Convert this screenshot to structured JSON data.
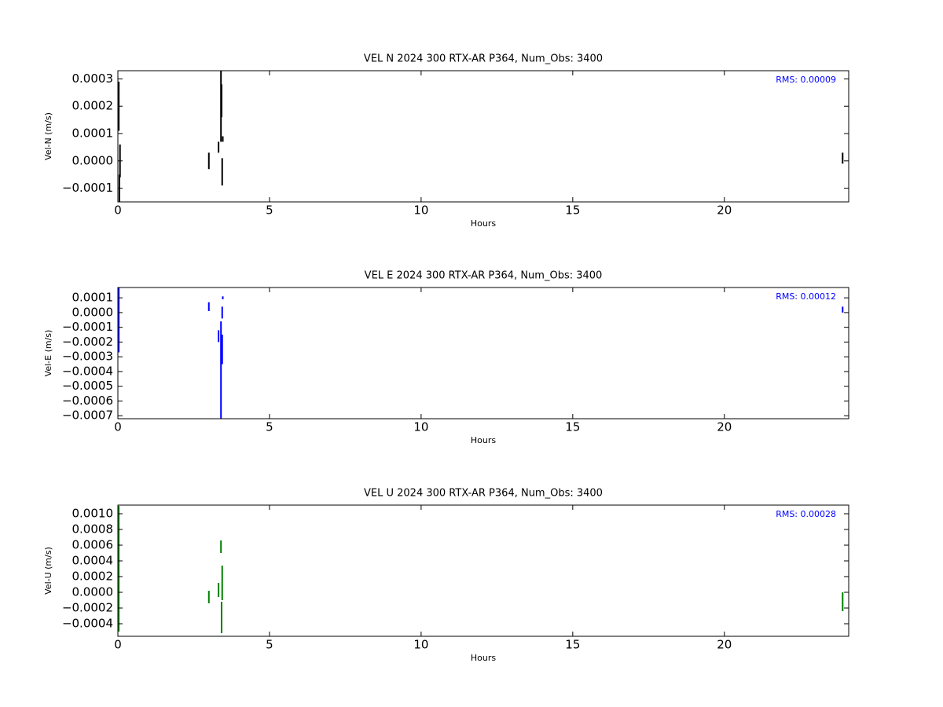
{
  "chart_data": [
    {
      "type": "errorbar",
      "title": "VEL N 2024 300 RTX-AR  P364, Num_Obs: 3400",
      "x_label": "Hours",
      "y_label": "Vel-N (m/s)",
      "annotation": "RMS:  0.00009",
      "annotation_color": "#0000ff",
      "color": "#000000",
      "x": [
        0.03,
        0.05,
        0.07,
        3.0,
        3.32,
        3.4,
        3.42,
        3.44,
        3.46,
        23.9
      ],
      "values": [
        0.0002,
        -0.0001,
        0.0,
        0.0,
        5e-05,
        0.0002,
        0.00022,
        -4e-05,
        8e-05,
        1e-05
      ],
      "errors": [
        9e-05,
        5e-05,
        6e-05,
        3e-05,
        2e-05,
        0.00013,
        6e-05,
        5e-05,
        1e-05,
        2e-05
      ],
      "xlim": [
        0,
        24.1
      ],
      "xticks": [
        0,
        5,
        10,
        15,
        20
      ],
      "ylim": [
        -0.00015,
        0.00033
      ],
      "yticks": [
        {
          "value": -0.0001,
          "label": "−0.0001"
        },
        {
          "value": 0,
          "label": "0.0000"
        },
        {
          "value": 0.0001,
          "label": "0.0001"
        },
        {
          "value": 0.0002,
          "label": "0.0002"
        },
        {
          "value": 0.0003,
          "label": "0.0003"
        }
      ]
    },
    {
      "type": "errorbar",
      "title": "VEL E 2024 300 RTX-AR  P364, Num_Obs: 3400",
      "x_label": "Hours",
      "y_label": "Vel-E (m/s)",
      "annotation": "RMS:  0.00012",
      "annotation_color": "#0000ff",
      "color": "#0000ff",
      "x": [
        0.03,
        3.0,
        3.32,
        3.4,
        3.44,
        3.44,
        3.46,
        23.9
      ],
      "values": [
        -5e-05,
        4e-05,
        -0.00016,
        -0.00039,
        -0.00025,
        0.0,
        0.0001,
        2e-05
      ],
      "errors": [
        0.00022,
        3e-05,
        4e-05,
        0.00033,
        0.0001,
        4e-05,
        1e-05,
        2e-05
      ],
      "xlim": [
        0,
        24.1
      ],
      "xticks": [
        0,
        5,
        10,
        15,
        20
      ],
      "ylim": [
        -0.00072,
        0.00017
      ],
      "yticks": [
        {
          "value": -0.0007,
          "label": "−0.0007"
        },
        {
          "value": -0.0006,
          "label": "−0.0006"
        },
        {
          "value": -0.0005,
          "label": "−0.0005"
        },
        {
          "value": -0.0004,
          "label": "−0.0004"
        },
        {
          "value": -0.0003,
          "label": "−0.0003"
        },
        {
          "value": -0.0002,
          "label": "−0.0002"
        },
        {
          "value": -0.0001,
          "label": "−0.0001"
        },
        {
          "value": 0,
          "label": "0.0000"
        },
        {
          "value": 0.0001,
          "label": "0.0001"
        }
      ]
    },
    {
      "type": "errorbar",
      "title": "VEL U 2024 300 RTX-AR  P364, Num_Obs: 3400",
      "x_label": "Hours",
      "y_label": "Vel-U (m/s)",
      "annotation": "RMS:  0.00028",
      "annotation_color": "#0000ff",
      "color": "#008000",
      "x": [
        0.03,
        3.0,
        3.32,
        3.4,
        3.42,
        3.44,
        23.9
      ],
      "values": [
        0.0003,
        -6e-05,
        3e-05,
        0.00058,
        -0.00032,
        0.00012,
        -0.00012
      ],
      "errors": [
        0.0008,
        8e-05,
        9e-05,
        8e-05,
        0.0002,
        0.00022,
        0.00012
      ],
      "xlim": [
        0,
        24.1
      ],
      "xticks": [
        0,
        5,
        10,
        15,
        20
      ],
      "ylim": [
        -0.00056,
        0.00111
      ],
      "yticks": [
        {
          "value": -0.0004,
          "label": "−0.0004"
        },
        {
          "value": -0.0002,
          "label": "−0.0002"
        },
        {
          "value": 0,
          "label": "0.0000"
        },
        {
          "value": 0.0002,
          "label": "0.0002"
        },
        {
          "value": 0.0004,
          "label": "0.0004"
        },
        {
          "value": 0.0006,
          "label": "0.0006"
        },
        {
          "value": 0.0008,
          "label": "0.0008"
        },
        {
          "value": 0.001,
          "label": "0.0010"
        }
      ]
    }
  ]
}
